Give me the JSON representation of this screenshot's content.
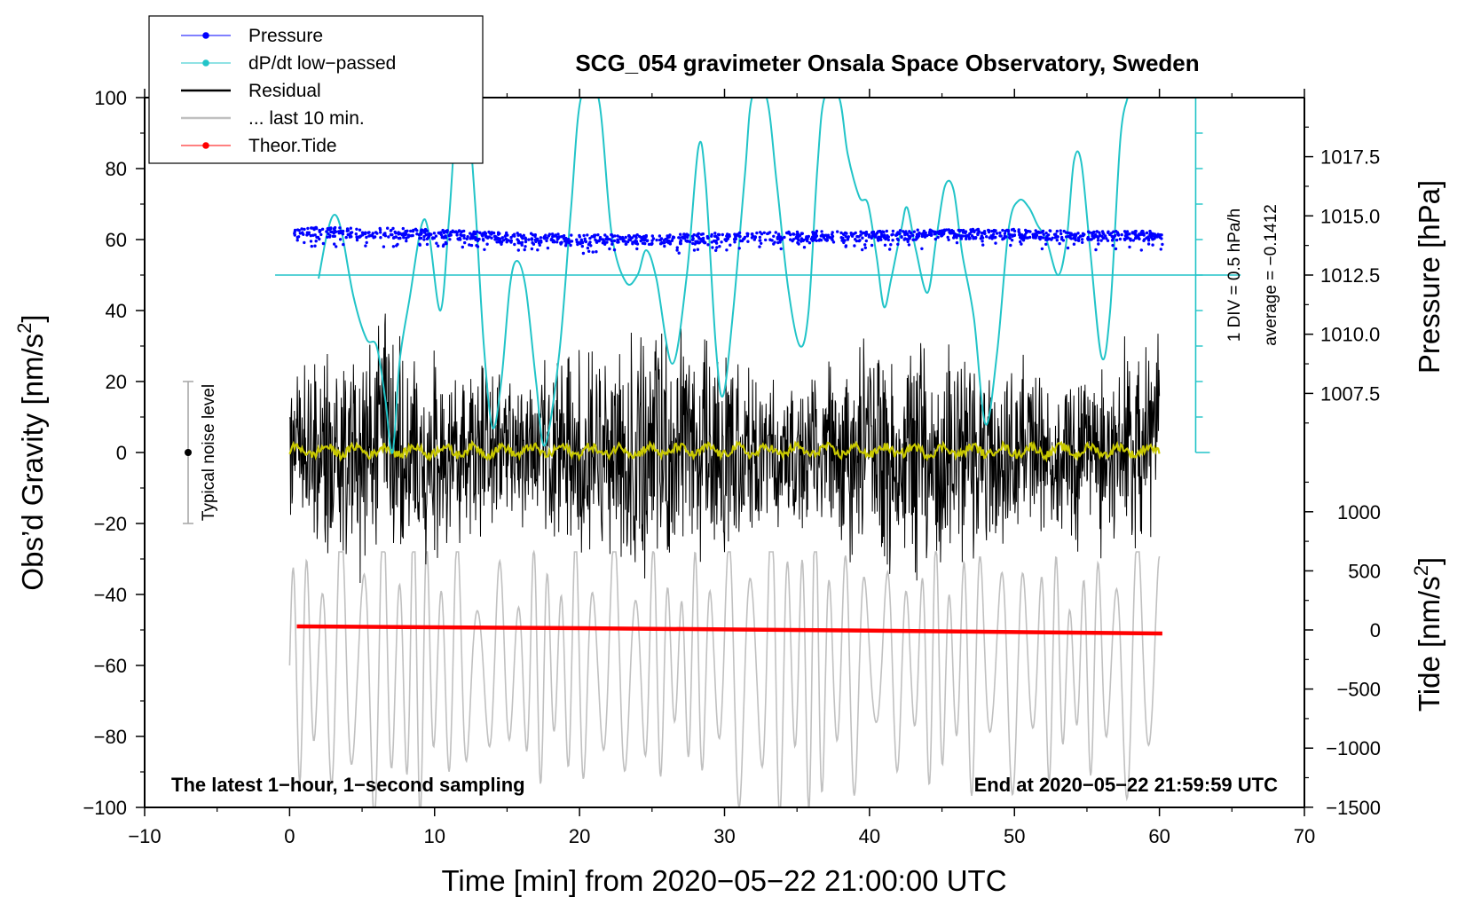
{
  "chart_data": {
    "type": "line",
    "title": "SCG_054 gravimeter Onsala Space Observatory, Sweden",
    "xlabel": "Time [min] from 2020−05−22 21:00:00 UTC",
    "ylabel_left_main": "Obs’d Gravity [nm/s",
    "ylabel_left_sup": "2",
    "ylabel_left_end": "]",
    "ylabel_right_pressure": "Pressure [hPa]",
    "ylabel_right_tide_main": "Tide [nm/s",
    "ylabel_right_tide_sup": "2",
    "ylabel_right_tide_end": "]",
    "xlim": [
      -10,
      70
    ],
    "ylim": [
      -100,
      100
    ],
    "x_ticks": [
      -10,
      0,
      10,
      20,
      30,
      40,
      50,
      60,
      70
    ],
    "x_tick_labels": [
      "−10",
      "0",
      "10",
      "20",
      "30",
      "40",
      "50",
      "60",
      "70"
    ],
    "y_ticks": [
      100,
      80,
      60,
      40,
      20,
      0,
      -20,
      -40,
      -60,
      -80,
      -100
    ],
    "y_tick_labels": [
      "100",
      "80",
      "60",
      "40",
      "20",
      "0",
      "−20",
      "−40",
      "−60",
      "−80",
      "−100"
    ],
    "pressure_axis": {
      "ticks": [
        1017.5,
        1015.0,
        1012.5,
        1010.0,
        1007.5
      ],
      "tick_labels": [
        "1017.5",
        "1015.0",
        "1012.5",
        "1010.0",
        "1007.5"
      ],
      "y_equiv_of_1012_5": 50,
      "gravity_per_hPa": 6.67
    },
    "tide_axis": {
      "ticks": [
        1000,
        500,
        0,
        -500,
        -1000,
        -1500
      ],
      "tick_labels": [
        "1000",
        "500",
        "0",
        "−500",
        "−1000",
        "−1500"
      ],
      "y_equiv_of_0": -50,
      "gravity_per_nm": 0.0333
    },
    "dpdt_scale": {
      "label_div": "1 DIV = 0.5 hPa/h",
      "label_avg": "average = −0.1412",
      "x_position_min": 62.5,
      "y_top": 100,
      "y_bottom": 0,
      "divisions": 10
    },
    "noise_bar": {
      "label": "Typical noise level",
      "x_min": -7,
      "y_center": 0,
      "y_low": -20,
      "y_high": 20
    },
    "series": [
      {
        "name": "Pressure",
        "color": "#0000ff",
        "style": "dots",
        "x_range": [
          0.3,
          60.2
        ],
        "gravity_equiv_mean": 60.5,
        "gravity_equiv_spread": 2.0,
        "keypoints": [
          [
            0.3,
            62
          ],
          [
            5,
            62
          ],
          [
            10,
            61.5
          ],
          [
            15,
            60.5
          ],
          [
            20,
            60
          ],
          [
            25,
            60
          ],
          [
            30,
            60.5
          ],
          [
            35,
            61
          ],
          [
            40,
            61
          ],
          [
            45,
            61.5
          ],
          [
            50,
            61.5
          ],
          [
            55,
            61
          ],
          [
            60.2,
            61
          ]
        ]
      },
      {
        "name": "dP/dt low−passed",
        "color": "#22c4c8",
        "style": "line",
        "baseline_y": 50,
        "points": [
          [
            2,
            49
          ],
          [
            2.6,
            62
          ],
          [
            3.1,
            67
          ],
          [
            3.6,
            62
          ],
          [
            4.4,
            44
          ],
          [
            5.3,
            32
          ],
          [
            6.0,
            30
          ],
          [
            6.6,
            15
          ],
          [
            7.1,
            0
          ],
          [
            7.6,
            26
          ],
          [
            8.3,
            44
          ],
          [
            9.1,
            64
          ],
          [
            9.6,
            62
          ],
          [
            10.4,
            40
          ],
          [
            11.0,
            66
          ],
          [
            11.6,
            100
          ],
          [
            12.2,
            100
          ],
          [
            12.8,
            70
          ],
          [
            13.4,
            30
          ],
          [
            14.0,
            7
          ],
          [
            14.6,
            20
          ],
          [
            15.2,
            47
          ],
          [
            15.7,
            54
          ],
          [
            16.3,
            46
          ],
          [
            17.0,
            20
          ],
          [
            17.6,
            2
          ],
          [
            18.6,
            28
          ],
          [
            19.4,
            68
          ],
          [
            20.1,
            100
          ],
          [
            21.3,
            100
          ],
          [
            22.2,
            62
          ],
          [
            23.2,
            48
          ],
          [
            24.0,
            50
          ],
          [
            24.6,
            57
          ],
          [
            25.3,
            49
          ],
          [
            26.4,
            25
          ],
          [
            27.4,
            50
          ],
          [
            28.2,
            86
          ],
          [
            28.7,
            76
          ],
          [
            29.4,
            30
          ],
          [
            29.9,
            16
          ],
          [
            30.6,
            40
          ],
          [
            31.4,
            78
          ],
          [
            31.9,
            100
          ],
          [
            32.9,
            100
          ],
          [
            33.6,
            76
          ],
          [
            34.4,
            46
          ],
          [
            35.2,
            30
          ],
          [
            35.8,
            40
          ],
          [
            36.4,
            80
          ],
          [
            36.9,
            100
          ],
          [
            37.9,
            100
          ],
          [
            38.5,
            84
          ],
          [
            39.3,
            72
          ],
          [
            39.9,
            70
          ],
          [
            40.5,
            55
          ],
          [
            41.0,
            41
          ],
          [
            41.5,
            49
          ],
          [
            42.2,
            63
          ],
          [
            42.6,
            69
          ],
          [
            43.2,
            57
          ],
          [
            44.0,
            45
          ],
          [
            44.6,
            60
          ],
          [
            45.2,
            75
          ],
          [
            45.8,
            74
          ],
          [
            46.4,
            56
          ],
          [
            47.2,
            38
          ],
          [
            48.0,
            8
          ],
          [
            48.8,
            28
          ],
          [
            49.6,
            63
          ],
          [
            50.3,
            71
          ],
          [
            51.0,
            69
          ],
          [
            51.6,
            64
          ],
          [
            52.2,
            60
          ],
          [
            53.0,
            50
          ],
          [
            53.6,
            60
          ],
          [
            54.1,
            82
          ],
          [
            54.6,
            82
          ],
          [
            55.2,
            58
          ],
          [
            56.0,
            27
          ],
          [
            56.6,
            40
          ],
          [
            57.3,
            88
          ],
          [
            57.8,
            100
          ]
        ]
      },
      {
        "name": "Residual",
        "color": "#000000",
        "style": "line",
        "x_range": [
          0.0,
          60.0
        ],
        "y_center": 0,
        "amplitude_range": [
          -45,
          48
        ]
      },
      {
        "name": "... last 10 min.",
        "color": "#c0c0c0",
        "style": "line",
        "x_range": [
          0.0,
          60.0
        ],
        "y_center": -60,
        "amplitude_range": [
          -100,
          -28
        ]
      },
      {
        "name": "Theor.Tide",
        "color": "#ff0000",
        "style": "dots",
        "points": [
          [
            0.5,
            -49
          ],
          [
            20,
            -49.5
          ],
          [
            40,
            -50.2
          ],
          [
            60.2,
            -51
          ]
        ]
      },
      {
        "name": "Residual smoothed",
        "color": "#c8c800",
        "style": "line",
        "x_range": [
          0.0,
          60.0
        ],
        "y_center": 0.5,
        "amplitude_range": [
          -2,
          3
        ]
      }
    ],
    "legend": {
      "placement": "top-left",
      "entries": [
        {
          "label": "Pressure",
          "color": "#0000ff",
          "marker": "dot"
        },
        {
          "label": "dP/dt low−passed",
          "color": "#22c4c8",
          "marker": "dot"
        },
        {
          "label": "Residual",
          "color": "#000000",
          "marker": "none"
        },
        {
          "label": "... last 10 min.",
          "color": "#c0c0c0",
          "marker": "none"
        },
        {
          "label": "Theor.Tide",
          "color": "#ff0000",
          "marker": "dot"
        }
      ]
    },
    "annotations": {
      "bottom_left": "The latest 1−hour, 1−second sampling",
      "bottom_right": "End at 2020−05−22 21:59:59 UTC"
    }
  }
}
